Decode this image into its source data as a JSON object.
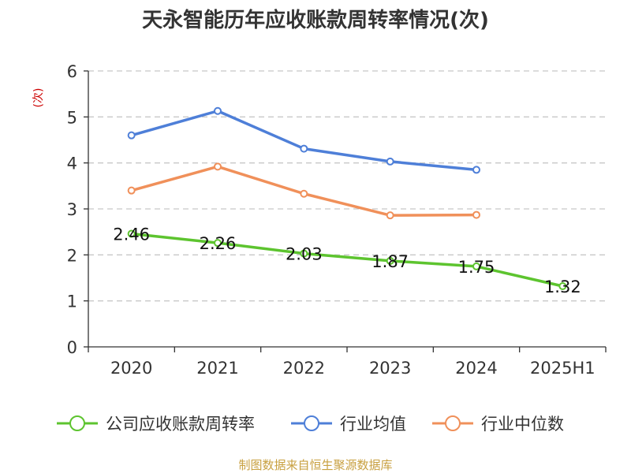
{
  "chart_data": {
    "type": "line",
    "title": "天永智能历年应收账款周转率情况(次)",
    "ylabel": "(次)",
    "ylim": [
      0,
      6
    ],
    "yticks": [
      0,
      1,
      2,
      3,
      4,
      5,
      6
    ],
    "categories": [
      "2020",
      "2021",
      "2022",
      "2023",
      "2024",
      "2025H1"
    ],
    "grid": true,
    "legend_position": "bottom",
    "series": [
      {
        "name": "公司应收账款周转率",
        "color": "#5dc42f",
        "values": [
          2.46,
          2.26,
          2.03,
          1.87,
          1.75,
          1.32
        ],
        "labels": [
          "2.46",
          "2.26",
          "2.03",
          "1.87",
          "1.75",
          "1.32"
        ]
      },
      {
        "name": "行业均值",
        "color": "#4e7fd8",
        "values": [
          4.6,
          5.13,
          4.31,
          4.03,
          3.85,
          null
        ]
      },
      {
        "name": "行业中位数",
        "color": "#f0905a",
        "values": [
          3.4,
          3.92,
          3.33,
          2.86,
          2.87,
          null
        ]
      }
    ],
    "source": "制图数据来自恒生聚源数据库",
    "colors": {
      "grid": "#c8c8c8",
      "axis": "#333333",
      "ylabel": "#cc0000",
      "source": "#c8a040"
    }
  }
}
